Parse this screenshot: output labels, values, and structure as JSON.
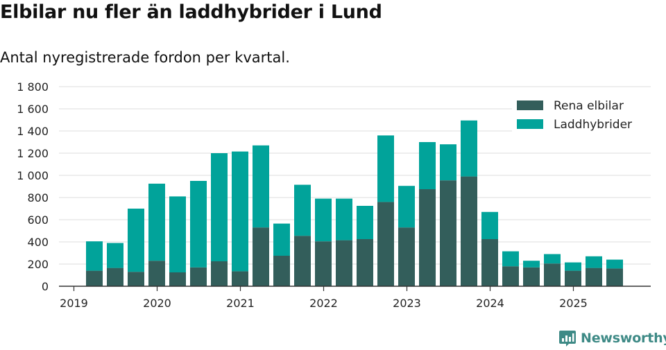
{
  "header": {
    "title": "Elbilar nu fler än laddhybrider i Lund",
    "subtitle": "Antal nyregistrerade fordon per kvartal."
  },
  "brand": {
    "name": "Newsworthy",
    "color": "#3e8a86"
  },
  "chart_data": {
    "type": "bar",
    "stacked": true,
    "x_tick_labels": [
      "2019",
      "2020",
      "2021",
      "2022",
      "2023",
      "2024",
      "2025"
    ],
    "y_tick_labels": [
      "0",
      "200",
      "400",
      "600",
      "800",
      "1 000",
      "1 200",
      "1 400",
      "1 600",
      "1 800"
    ],
    "ylim": [
      0,
      1800
    ],
    "grid": true,
    "legend_position": "top-right",
    "categories": [
      "2019 Q2",
      "2019 Q3",
      "2019 Q4",
      "2020 Q1",
      "2020 Q2",
      "2020 Q3",
      "2020 Q4",
      "2021 Q1",
      "2021 Q2",
      "2021 Q3",
      "2021 Q4",
      "2022 Q1",
      "2022 Q2",
      "2022 Q3",
      "2022 Q4",
      "2023 Q1",
      "2023 Q2",
      "2023 Q3",
      "2023 Q4",
      "2024 Q1",
      "2024 Q2",
      "2024 Q3",
      "2024 Q4",
      "2025 Q1",
      "2025 Q2",
      "2025 Q3"
    ],
    "series": [
      {
        "name": "Rena elbilar",
        "color": "#335e5b",
        "values": [
          140,
          165,
          130,
          230,
          125,
          170,
          225,
          135,
          530,
          275,
          455,
          405,
          415,
          425,
          760,
          530,
          875,
          955,
          990,
          425,
          180,
          170,
          205,
          140,
          165,
          160
        ]
      },
      {
        "name": "Laddhybrider",
        "color": "#01a39a",
        "values": [
          265,
          225,
          570,
          695,
          685,
          780,
          975,
          1080,
          740,
          290,
          460,
          385,
          375,
          300,
          600,
          375,
          425,
          325,
          505,
          245,
          135,
          60,
          85,
          75,
          105,
          80
        ]
      }
    ]
  }
}
